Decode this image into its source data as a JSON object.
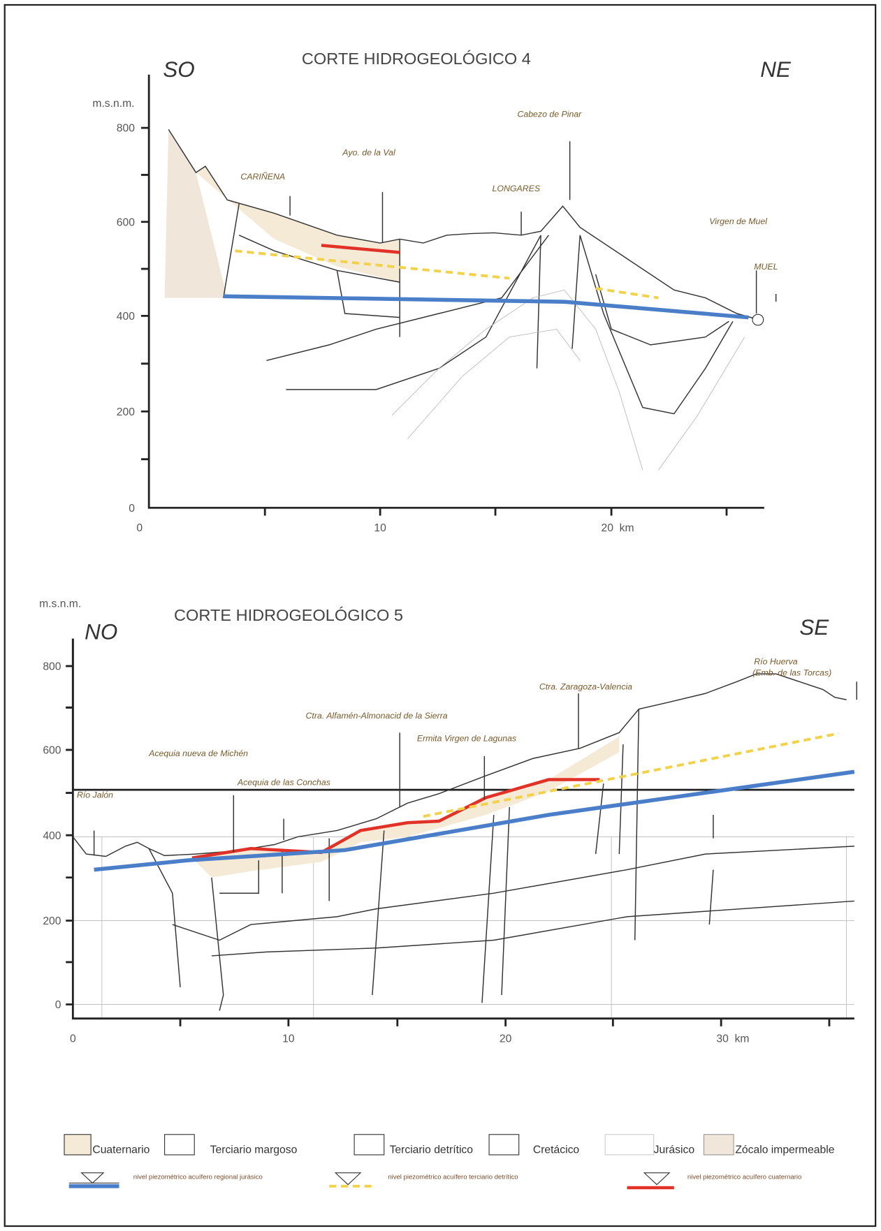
{
  "section4": {
    "title": "CORTE HIDROGEOLÓGICO 4",
    "left": "SO",
    "right": "NE",
    "unit": "m.s.n.m.",
    "yticks": [
      "800",
      "600",
      "400",
      "200",
      "0"
    ],
    "xticks": [
      "0",
      "10",
      "20  km"
    ],
    "places": [
      "Cabezo de Pinar",
      "Ayo. de la Val",
      "CARIÑENA",
      "LONGARES",
      "Virgen de Muel",
      "MUEL"
    ]
  },
  "section5": {
    "title": "CORTE HIDROGEOLÓGICO 5",
    "left": "NO",
    "right": "SE",
    "unit": "m.s.n.m.",
    "yticks": [
      "800",
      "600",
      "400",
      "200",
      "0"
    ],
    "xticks": [
      "0",
      "10",
      "20",
      "30  km"
    ],
    "places": [
      "Río Huerva",
      "(Emb. de las Torcas)",
      "Ctra. Zaragoza-Valencia",
      "Ctra. Alfamén-Almonacid de la Sierra",
      "Ermita Virgen de Lagunas",
      "Acequia nueva de Michén",
      "Acequia de las Conchas",
      "Río Jalón"
    ]
  },
  "legend": {
    "units": [
      "Cuaternario",
      "Terciario margoso",
      "Terciario detrítico",
      "Cretácico",
      "Jurásico",
      "Zócalo impermeable"
    ],
    "levels": [
      "nivel piezométrico acuífero regional jurásico",
      "nivel piezométrico acuífero terciario detrítico",
      "nivel piezométrico acuífero cuaternario"
    ]
  }
}
